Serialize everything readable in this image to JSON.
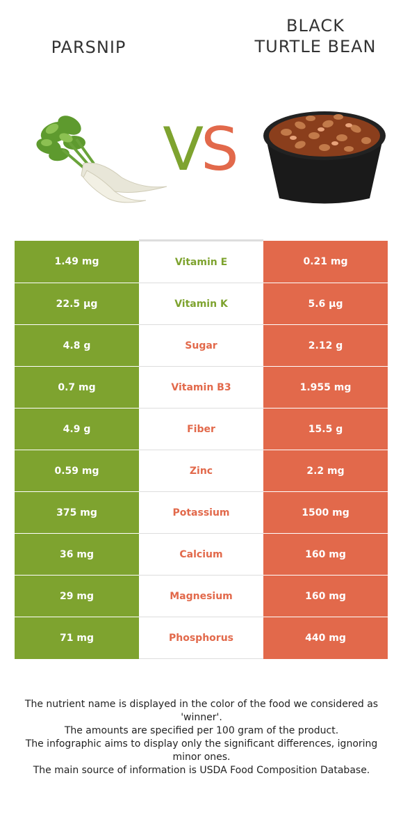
{
  "header": {
    "left_food": "PARSNIP",
    "right_food": "BLACK\nTURTLE BEAN",
    "vs_v": "V",
    "vs_s": "S"
  },
  "colors": {
    "left_winner": "#7ea32f",
    "right_winner": "#e2694b"
  },
  "rows": [
    {
      "left": "1.49 mg",
      "nutrient": "Vitamin E",
      "right": "0.21 mg",
      "winner": "left"
    },
    {
      "left": "22.5 µg",
      "nutrient": "Vitamin K",
      "right": "5.6 µg",
      "winner": "left"
    },
    {
      "left": "4.8 g",
      "nutrient": "Sugar",
      "right": "2.12 g",
      "winner": "right"
    },
    {
      "left": "0.7 mg",
      "nutrient": "Vitamin B3",
      "right": "1.955 mg",
      "winner": "right"
    },
    {
      "left": "4.9 g",
      "nutrient": "Fiber",
      "right": "15.5 g",
      "winner": "right"
    },
    {
      "left": "0.59 mg",
      "nutrient": "Zinc",
      "right": "2.2 mg",
      "winner": "right"
    },
    {
      "left": "375 mg",
      "nutrient": "Potassium",
      "right": "1500 mg",
      "winner": "right"
    },
    {
      "left": "36 mg",
      "nutrient": "Calcium",
      "right": "160 mg",
      "winner": "right"
    },
    {
      "left": "29 mg",
      "nutrient": "Magnesium",
      "right": "160 mg",
      "winner": "right"
    },
    {
      "left": "71 mg",
      "nutrient": "Phosphorus",
      "right": "440 mg",
      "winner": "right"
    }
  ],
  "footer": {
    "line1": "The nutrient name is displayed in the color of the food we considered as 'winner'.",
    "line2": "The amounts are specified per 100 gram of the product.",
    "line3": "The infographic aims to display only the significant differences, ignoring minor ones.",
    "line4": "The main source of information is USDA Food Composition Database."
  }
}
